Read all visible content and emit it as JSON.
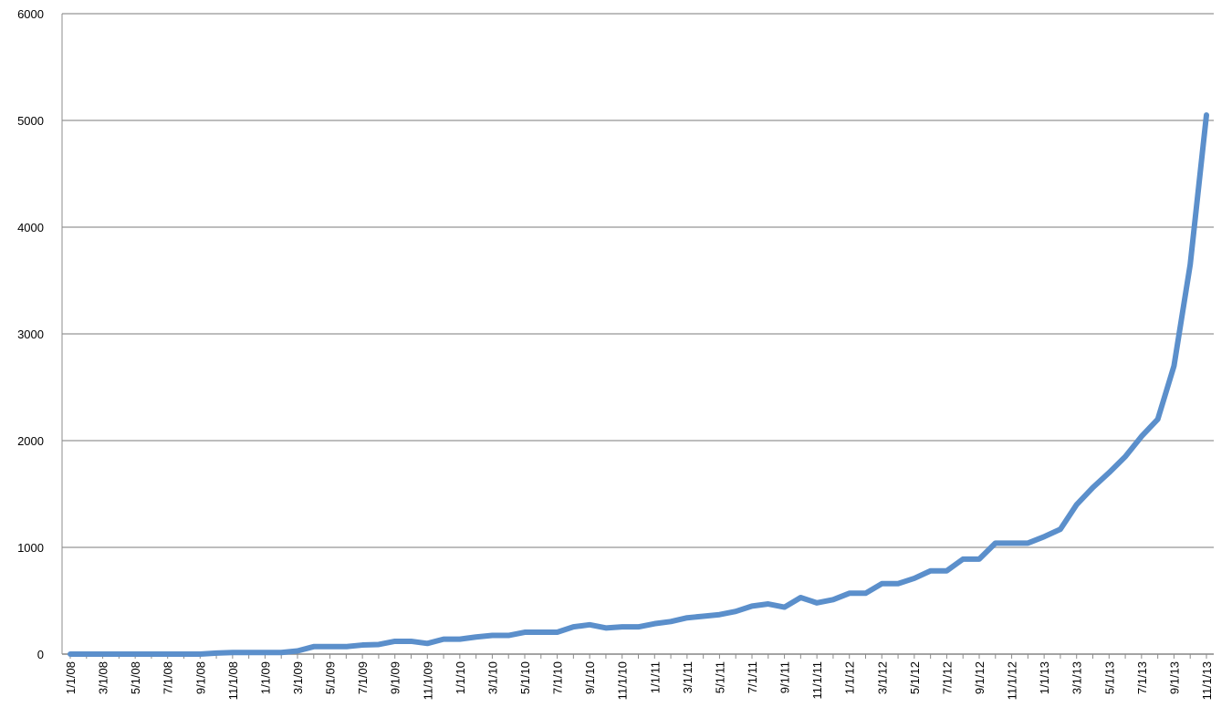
{
  "chart_data": {
    "type": "line",
    "categories": [
      "1/1/08",
      null,
      "3/1/08",
      null,
      "5/1/08",
      null,
      "7/1/08",
      null,
      "9/1/08",
      null,
      "11/1/08",
      null,
      "1/1/09",
      null,
      "3/1/09",
      null,
      "5/1/09",
      null,
      "7/1/09",
      null,
      "9/1/09",
      null,
      "11/1/09",
      null,
      "1/1/10",
      null,
      "3/1/10",
      null,
      "5/1/10",
      null,
      "7/1/10",
      null,
      "9/1/10",
      null,
      "11/1/10",
      null,
      "1/1/11",
      null,
      "3/1/11",
      null,
      "5/1/11",
      null,
      "7/1/11",
      null,
      "9/1/11",
      null,
      "11/1/11",
      null,
      "1/1/12",
      null,
      "3/1/12",
      null,
      "5/1/12",
      null,
      "7/1/12",
      null,
      "9/1/12",
      null,
      "11/1/12",
      null,
      "1/1/13",
      null,
      "3/1/13",
      null,
      "5/1/13",
      null,
      "7/1/13",
      null,
      "9/1/13",
      null,
      "11/1/13"
    ],
    "values": [
      0,
      0,
      0,
      0,
      0,
      0,
      0,
      0,
      0,
      10,
      15,
      15,
      15,
      15,
      30,
      70,
      70,
      70,
      85,
      90,
      120,
      120,
      100,
      140,
      140,
      160,
      175,
      175,
      205,
      205,
      205,
      255,
      275,
      245,
      255,
      255,
      285,
      305,
      340,
      355,
      370,
      400,
      450,
      470,
      440,
      530,
      480,
      510,
      570,
      570,
      660,
      660,
      710,
      780,
      780,
      890,
      890,
      1040,
      1040,
      1040,
      1100,
      1170,
      1400,
      1560,
      1700,
      1850,
      2040,
      2200,
      2700,
      3650,
      5050
    ],
    "color": "#5b8fcb",
    "ylim": [
      0,
      6000
    ],
    "yticks": [
      0,
      1000,
      2000,
      3000,
      4000,
      5000,
      6000
    ],
    "grid": true
  }
}
